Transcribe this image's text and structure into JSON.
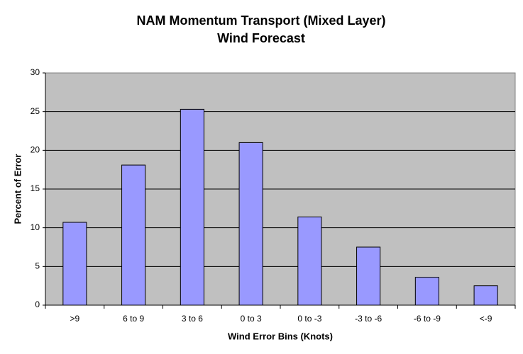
{
  "chart_data": {
    "type": "bar",
    "title": "NAM Momentum Transport (Mixed Layer)",
    "subtitle": "Wind Forecast",
    "x_label": "Wind Error Bins (Knots)",
    "y_label": "Percent of Error",
    "categories": [
      ">9",
      "6 to 9",
      "3 to 6",
      "0 to 3",
      "0 to -3",
      "-3 to -6",
      "-6 to -9",
      "<-9"
    ],
    "values": [
      10.7,
      18.1,
      25.3,
      21.0,
      11.4,
      7.5,
      3.6,
      2.5
    ],
    "color": "#9999ff",
    "ylim": [
      0,
      30
    ],
    "yticks": [
      0,
      5,
      10,
      15,
      20,
      25,
      30
    ],
    "grid": true
  }
}
